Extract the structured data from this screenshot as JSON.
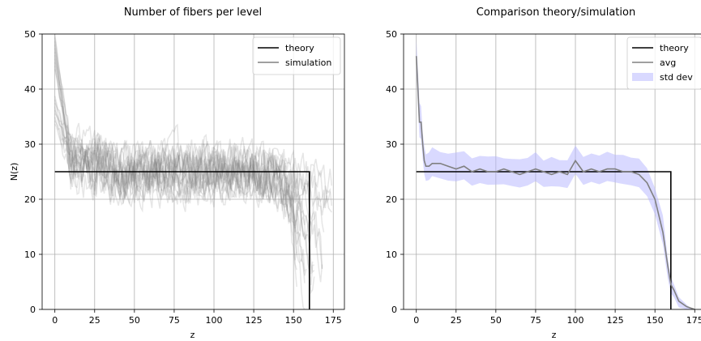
{
  "chart_data": [
    {
      "type": "line",
      "title": "Number of fibers per level",
      "xlabel": "z",
      "ylabel": "N(z)",
      "xlim": [
        -8,
        182
      ],
      "ylim": [
        0,
        50
      ],
      "xticks": [
        "0",
        "25",
        "50",
        "75",
        "100",
        "125",
        "150",
        "175"
      ],
      "yticks": [
        "0",
        "10",
        "20",
        "30",
        "40",
        "50"
      ],
      "grid": true,
      "legend_position": "top-right",
      "legend": [
        "theory",
        "simulation"
      ],
      "colors": {
        "theory": "#000000",
        "simulation": "#808080"
      },
      "series": [
        {
          "name": "theory",
          "x": [
            0,
            160,
            160
          ],
          "y": [
            25,
            25,
            0
          ]
        },
        {
          "name": "simulation",
          "runs": 20,
          "z_range": [
            0,
            175
          ],
          "start_values_range": [
            33,
            50
          ],
          "mean_profile": {
            "x": [
              0,
              2,
              4,
              6,
              8,
              10,
              20,
              40,
              60,
              80,
              100,
              120,
              140,
              150,
              155,
              160,
              165,
              170,
              175
            ],
            "y": [
              46,
              38,
              34,
              30,
              28,
              27,
              26,
              25,
              25,
              25,
              25,
              25,
              24,
              20,
              12,
              4,
              1.5,
              0.5,
              0
            ]
          },
          "spread_range": [
            -9,
            9
          ]
        }
      ]
    },
    {
      "type": "line",
      "title": "Comparison theory/simulation",
      "xlabel": "z",
      "ylabel": "",
      "xlim": [
        -8,
        182
      ],
      "ylim": [
        0,
        50
      ],
      "xticks": [
        "0",
        "25",
        "50",
        "75",
        "100",
        "125",
        "150",
        "175"
      ],
      "yticks": [
        "0",
        "10",
        "20",
        "30",
        "40",
        "50"
      ],
      "grid": true,
      "legend_position": "top-right",
      "legend": [
        "theory",
        "avg",
        "std dev"
      ],
      "colors": {
        "theory": "#000000",
        "avg": "#808080",
        "std dev": "#b3b3ff"
      },
      "series": [
        {
          "name": "theory",
          "x": [
            0,
            160,
            160
          ],
          "y": [
            25,
            25,
            0
          ]
        },
        {
          "name": "avg",
          "x": [
            0,
            1,
            2,
            3,
            4,
            5,
            6,
            8,
            10,
            15,
            20,
            25,
            30,
            35,
            40,
            45,
            50,
            55,
            60,
            65,
            70,
            75,
            80,
            85,
            90,
            95,
            100,
            105,
            110,
            115,
            120,
            125,
            130,
            135,
            140,
            145,
            150,
            155,
            158,
            160,
            162,
            165,
            170,
            175
          ],
          "y": [
            46,
            40,
            34,
            34,
            30,
            27,
            26,
            26,
            26.5,
            26.5,
            26,
            25.5,
            26,
            25,
            25.5,
            25,
            25,
            25.5,
            25,
            24.5,
            25,
            25.5,
            25,
            24.5,
            25,
            24.5,
            27,
            25,
            25.5,
            25,
            25.5,
            25.5,
            25,
            25,
            24.5,
            23,
            20,
            14,
            8,
            4.5,
            3.5,
            1.5,
            0.5,
            0
          ]
        },
        {
          "name": "std dev",
          "sd": [
            3,
            3,
            3,
            3,
            2.5,
            2.5,
            2.5,
            2.5,
            2.5,
            2.5,
            2.5,
            2.5,
            2.5,
            2.5,
            2.5,
            2.5,
            2.5,
            2.5,
            2.5,
            2.5,
            2.5,
            2.5,
            2.5,
            2.5,
            2.5,
            2.5,
            2.5,
            2.5,
            2.5,
            2.5,
            2.5,
            2.5,
            2.5,
            2.5,
            2.5,
            2.5,
            2.5,
            2.5,
            2,
            1.5,
            1.2,
            1,
            0.5,
            0
          ]
        }
      ]
    }
  ]
}
